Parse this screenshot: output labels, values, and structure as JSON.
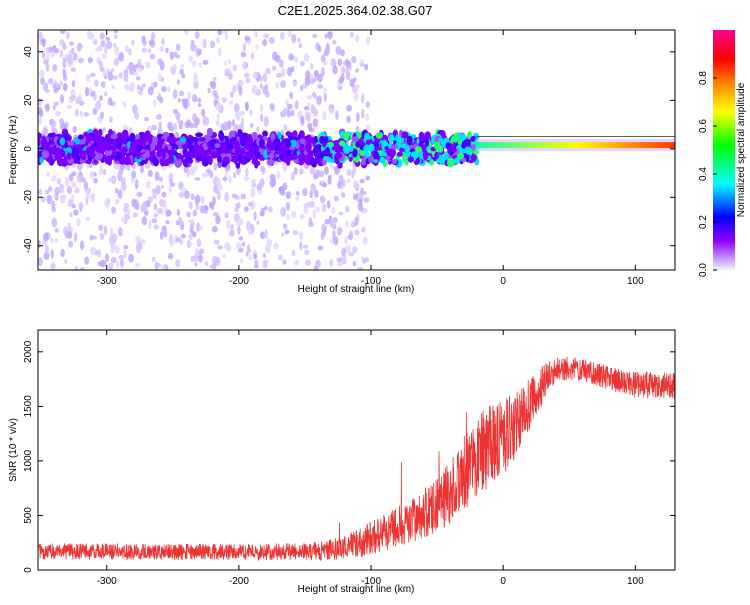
{
  "title": "C2E1.2025.364.02.38.G07",
  "colorbar": {
    "label": "Normalized spectral amplitude",
    "ticks": [
      "0.0",
      "0.2",
      "0.4",
      "0.6",
      "0.8"
    ],
    "tick_values": [
      0.0,
      0.2,
      0.4,
      0.6,
      0.8
    ],
    "range": [
      0,
      1
    ],
    "colors": [
      "#f4f4f4",
      "#9400ff",
      "#0000ff",
      "#00ffff",
      "#00ff00",
      "#ffff00",
      "#ff8000",
      "#ff0000",
      "#ff0090"
    ]
  },
  "chart_data": [
    {
      "type": "heatmap",
      "name": "spectrogram",
      "xlabel": "Height of straight line (km)",
      "ylabel": "Frequency (Hz)",
      "xlim": [
        -352,
        130
      ],
      "ylim": [
        -50,
        49
      ],
      "xticks": [
        -300,
        -200,
        -100,
        0,
        100
      ],
      "xtick_labels": [
        "-300",
        "-200",
        "-100",
        "0",
        "100"
      ],
      "yticks": [
        -40,
        -20,
        0,
        20,
        40
      ],
      "ytick_labels": [
        "-40",
        "-20",
        "0",
        "20",
        "40"
      ],
      "features": {
        "noise_cutoff_km": -112,
        "dense_band_halfwidth_hz": 6,
        "tone_start_km": -20,
        "tone_frequency_hz": 1.5,
        "tone_amplitude": 0.8
      }
    },
    {
      "type": "line",
      "name": "snr",
      "xlabel": "Height of straight line (km)",
      "ylabel": "SNR (10 * v/v)",
      "xlim": [
        -352,
        130
      ],
      "ylim": [
        0,
        2200
      ],
      "xticks": [
        -300,
        -200,
        -100,
        0,
        100
      ],
      "xtick_labels": [
        "-300",
        "-200",
        "-100",
        "0",
        "100"
      ],
      "yticks": [
        0,
        500,
        1000,
        1500,
        2000
      ],
      "ytick_labels": [
        "0",
        "500",
        "1000",
        "1500",
        "2000"
      ],
      "series": [
        {
          "name": "SNR",
          "color": "#ee3333",
          "x": [
            -352,
            -300,
            -250,
            -200,
            -150,
            -130,
            -110,
            -100,
            -80,
            -60,
            -40,
            -30,
            -20,
            -10,
            0,
            10,
            20,
            30,
            40,
            60,
            80,
            100,
            130
          ],
          "y": [
            170,
            170,
            165,
            165,
            170,
            185,
            240,
            300,
            390,
            520,
            700,
            880,
            1050,
            1130,
            1200,
            1340,
            1520,
            1700,
            1850,
            1840,
            1760,
            1700,
            1690
          ],
          "noise": [
            75,
            75,
            75,
            75,
            80,
            95,
            130,
            160,
            190,
            230,
            290,
            340,
            380,
            380,
            360,
            300,
            230,
            180,
            110,
            110,
            110,
            120,
            120
          ]
        }
      ]
    }
  ]
}
